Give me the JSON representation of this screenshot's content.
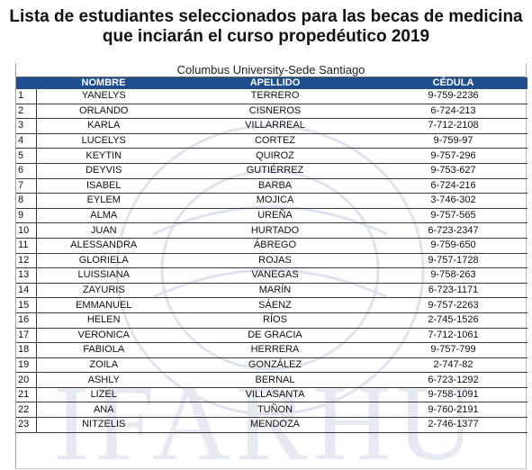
{
  "title": {
    "line1": "Lista de estudiantes seleccionados para las becas de medicina",
    "line2": "que inciarán el curso propedéutico 2019"
  },
  "university": "Columbus University-Sede Santiago",
  "watermark_text": "IFARHU",
  "headers": {
    "name": "NOMBRE",
    "surname": "APELLIDO",
    "id": "CÉDULA"
  },
  "rows": [
    {
      "num": "1",
      "name": "YANELYS",
      "surname": "TERRERO",
      "id": "9-759-2236"
    },
    {
      "num": "2",
      "name": "ORLANDO",
      "surname": "CISNEROS",
      "id": "6-724-213"
    },
    {
      "num": "3",
      "name": "KARLA",
      "surname": "VILLARREAL",
      "id": "7-712-2108"
    },
    {
      "num": "4",
      "name": "LUCELYS",
      "surname": "CORTEZ",
      "id": "9-759-97"
    },
    {
      "num": "5",
      "name": "KEYTIN",
      "surname": "QUIROZ",
      "id": "9-757-296"
    },
    {
      "num": "6",
      "name": "DEYVIS",
      "surname": "GUTIÉRREZ",
      "id": "9-753-627"
    },
    {
      "num": "7",
      "name": "ISABEL",
      "surname": "BARBA",
      "id": "6-724-216"
    },
    {
      "num": "8",
      "name": "EYLEM",
      "surname": "MOJICA",
      "id": "3-746-302"
    },
    {
      "num": "9",
      "name": "ALMA",
      "surname": "UREÑA",
      "id": "9-757-565"
    },
    {
      "num": "10",
      "name": "JUAN",
      "surname": "HURTADO",
      "id": "6-723-2347"
    },
    {
      "num": "11",
      "name": "ALESSANDRA",
      "surname": "ÁBREGO",
      "id": "9-759-650"
    },
    {
      "num": "12",
      "name": "GLORIELA",
      "surname": "ROJAS",
      "id": "9-757-1728"
    },
    {
      "num": "13",
      "name": "LUISSIANA",
      "surname": "VANEGAS",
      "id": "9-758-263"
    },
    {
      "num": "14",
      "name": "ZAYURIS",
      "surname": "MARÍN",
      "id": "6-723-1171"
    },
    {
      "num": "15",
      "name": "EMMANUEL",
      "surname": "SÁENZ",
      "id": "9-757-2263"
    },
    {
      "num": "16",
      "name": "HELEN",
      "surname": "RÍOS",
      "id": "2-745-1526"
    },
    {
      "num": "17",
      "name": "VERONICA",
      "surname": "DE GRACIA",
      "id": "7-712-1061"
    },
    {
      "num": "18",
      "name": "FABIOLA",
      "surname": "HERRERA",
      "id": "9-757-799"
    },
    {
      "num": "19",
      "name": "ZOILA",
      "surname": "GONZÁLEZ",
      "id": "2-747-82"
    },
    {
      "num": "20",
      "name": "ASHLY",
      "surname": "BERNAL",
      "id": "6-723-1292"
    },
    {
      "num": "21",
      "name": "LIZEL",
      "surname": "VILLASANTA",
      "id": "9-758-1091"
    },
    {
      "num": "22",
      "name": "ANA",
      "surname": "TUÑON",
      "id": "9-760-2191"
    },
    {
      "num": "23",
      "name": "NITZELIS",
      "surname": "MENDOZA",
      "id": "2-746-1377"
    }
  ]
}
